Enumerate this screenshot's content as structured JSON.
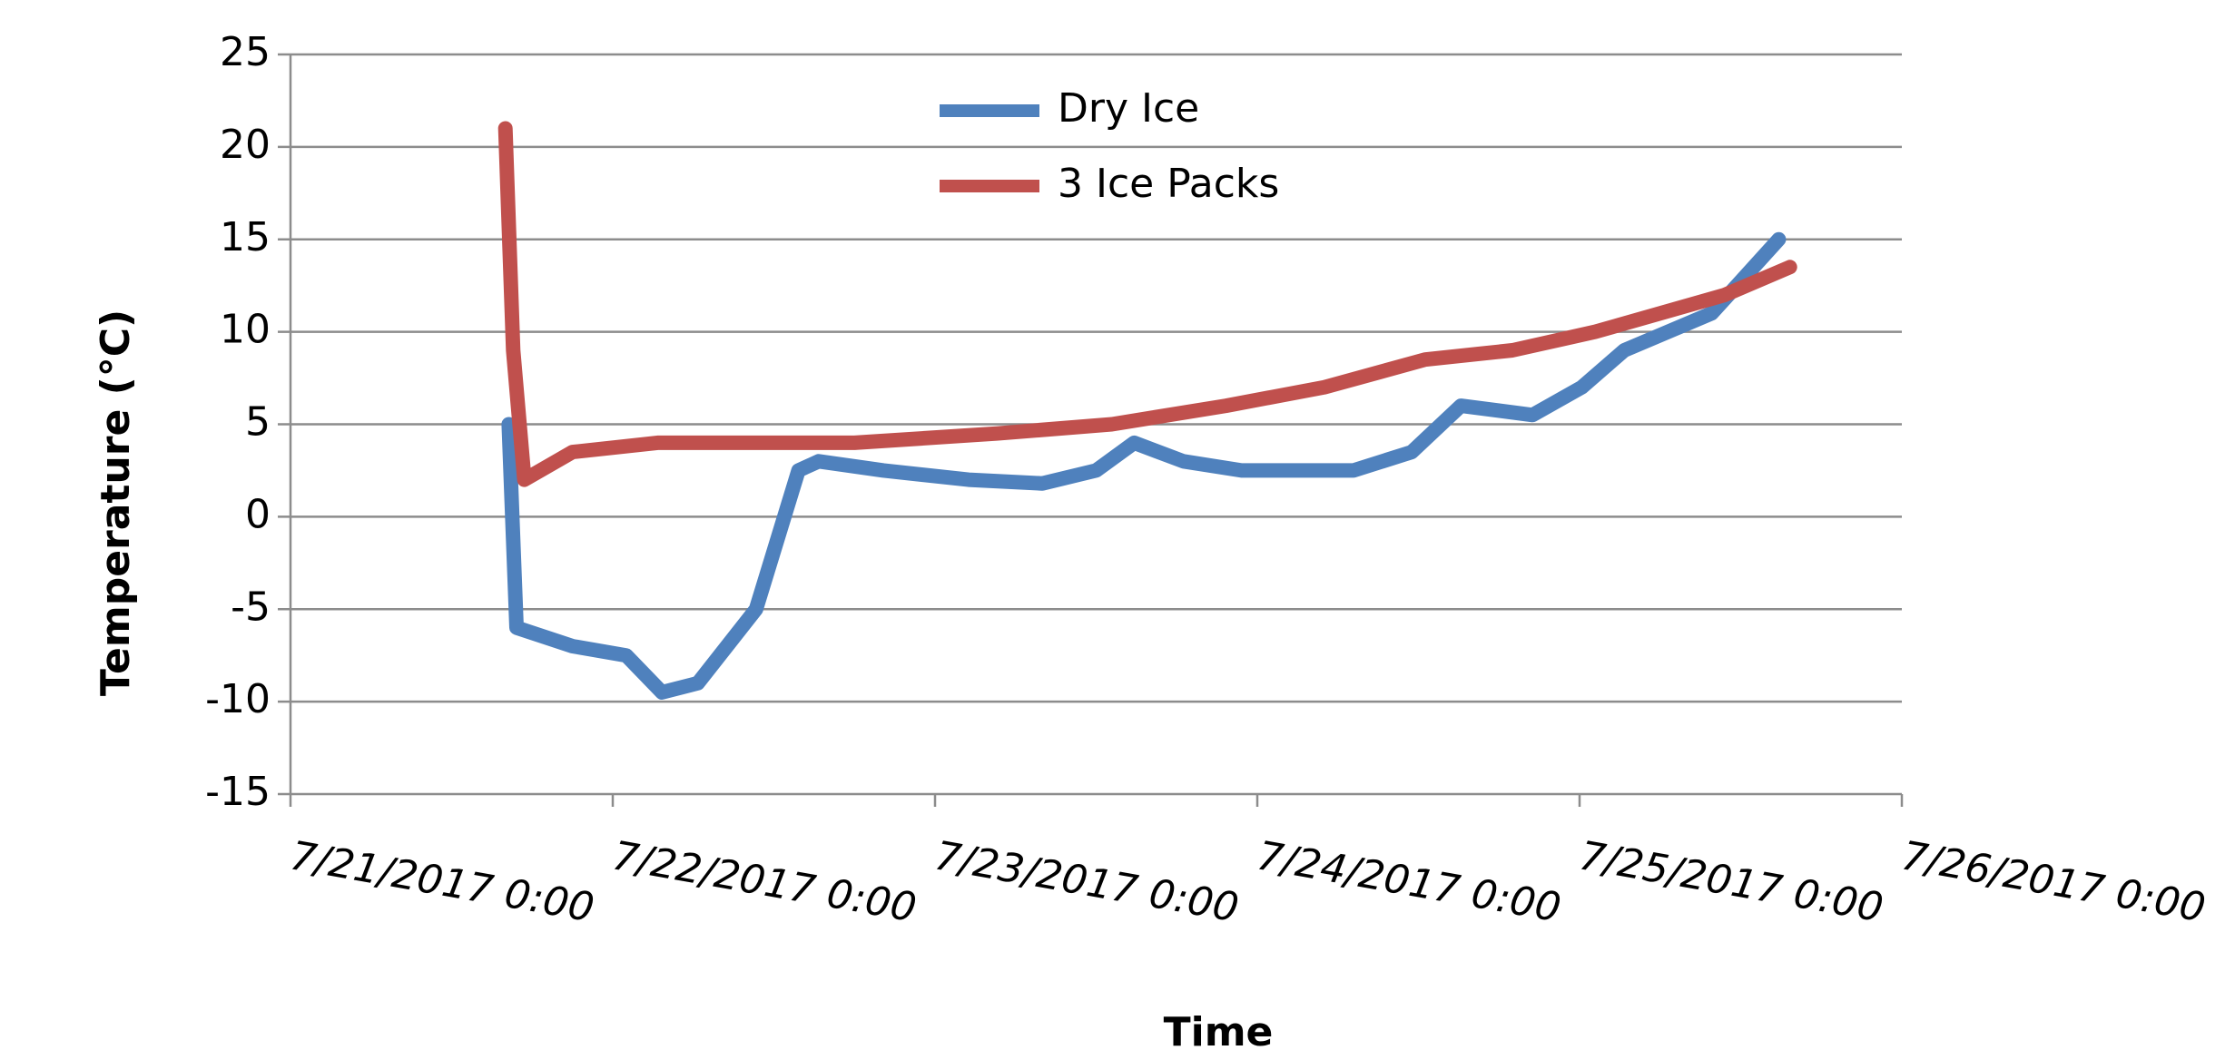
{
  "chart_data": {
    "type": "line",
    "xlabel": "Time",
    "ylabel": "Temperature (°C)",
    "xlim": [
      "2017-07-21 00:00",
      "2017-07-26 00:00"
    ],
    "xticks": [
      {
        "value": "2017-07-21 00:00",
        "label": "7/21/2017 0:00"
      },
      {
        "value": "2017-07-22 00:00",
        "label": "7/22/2017 0:00"
      },
      {
        "value": "2017-07-23 00:00",
        "label": "7/23/2017 0:00"
      },
      {
        "value": "2017-07-24 00:00",
        "label": "7/24/2017 0:00"
      },
      {
        "value": "2017-07-25 00:00",
        "label": "7/25/2017 0:00"
      },
      {
        "value": "2017-07-26 00:00",
        "label": "7/26/2017 0:00"
      }
    ],
    "ylim": [
      -15,
      25
    ],
    "yticks": [
      -15,
      -10,
      -5,
      0,
      5,
      10,
      15,
      20,
      25
    ],
    "grid": true,
    "series": [
      {
        "name": "Dry Ice",
        "color": "#4f81bd",
        "x": [
          "2017-07-21 16:15",
          "2017-07-21 16:50",
          "2017-07-21 21:00",
          "2017-07-22 01:00",
          "2017-07-22 03:40",
          "2017-07-22 06:20",
          "2017-07-22 10:40",
          "2017-07-22 13:50",
          "2017-07-22 15:20",
          "2017-07-22 20:10",
          "2017-07-23 02:30",
          "2017-07-23 08:00",
          "2017-07-23 12:00",
          "2017-07-23 14:50",
          "2017-07-23 18:30",
          "2017-07-23 22:50",
          "2017-07-24 07:10",
          "2017-07-24 11:30",
          "2017-07-24 15:10",
          "2017-07-24 20:30",
          "2017-07-25 00:10",
          "2017-07-25 03:20",
          "2017-07-25 09:50",
          "2017-07-25 14:50"
        ],
        "values": [
          5,
          -6,
          -7,
          -7.5,
          -9.5,
          -9,
          -5,
          2.5,
          3,
          2.5,
          2,
          1.8,
          2.5,
          4,
          3,
          2.5,
          2.5,
          3.5,
          6,
          5.5,
          7,
          9,
          11,
          15
        ]
      },
      {
        "name": "3 Ice Packs",
        "color": "#c0504d",
        "x": [
          "2017-07-21 16:00",
          "2017-07-21 16:35",
          "2017-07-21 17:25",
          "2017-07-21 21:00",
          "2017-07-22 03:20",
          "2017-07-22 18:00",
          "2017-07-23 04:35",
          "2017-07-23 13:10",
          "2017-07-23 21:40",
          "2017-07-24 05:00",
          "2017-07-24 12:30",
          "2017-07-24 19:00",
          "2017-07-25 01:10",
          "2017-07-25 10:50",
          "2017-07-25 15:40"
        ],
        "values": [
          21,
          9,
          2,
          3.5,
          4,
          4,
          4.5,
          5,
          6,
          7,
          8.5,
          9,
          10,
          12,
          13.5
        ]
      }
    ]
  }
}
